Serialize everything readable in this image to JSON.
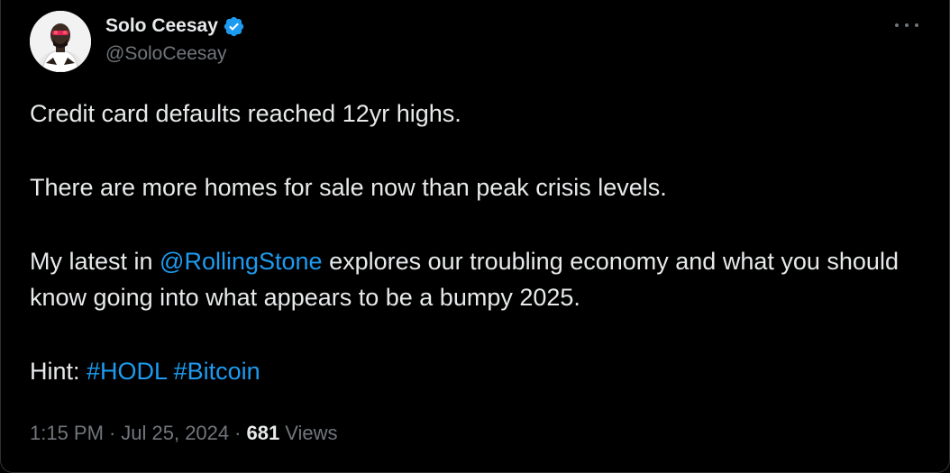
{
  "author": {
    "display_name": "Solo Ceesay",
    "handle": "@SoloCeesay",
    "verified": true,
    "avatar": "profile-photo"
  },
  "tweet": {
    "line1": "Credit card defaults reached 12yr highs.",
    "line2": "There are more homes for sale now than peak crisis levels.",
    "line3_prefix": "My latest in ",
    "line3_mention": "@RollingStone",
    "line3_suffix": " explores our troubling economy and what you should know going into what appears to be a bumpy 2025.",
    "hint_label": "Hint: ",
    "hashtag1": "#HODL",
    "hashtag2": "#Bitcoin"
  },
  "meta": {
    "time": "1:15 PM",
    "dot1": "·",
    "date": "Jul 25, 2024",
    "dot2": "·",
    "views_count": "681",
    "views_label": "Views"
  },
  "colors": {
    "background": "#000000",
    "text": "#e7e9ea",
    "muted": "#71767b",
    "link": "#1d9bf0",
    "verified": "#1d9bf0"
  }
}
